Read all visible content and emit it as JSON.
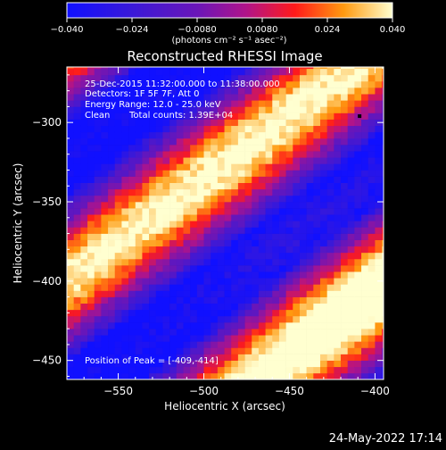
{
  "chart_data": {
    "type": "heatmap",
    "title": "Reconstructed RHESSI Image",
    "xlabel": "Heliocentric X (arcsec)",
    "ylabel": "Heliocentric Y (arcsec)",
    "xlim": [
      -580,
      -395
    ],
    "ylim": [
      -462,
      -265
    ],
    "xticks": [
      -550,
      -500,
      -450,
      -400
    ],
    "yticks": [
      -300,
      -350,
      -400,
      -450
    ],
    "colorbar": {
      "min": -0.04,
      "max": 0.04,
      "ticks": [
        -0.04,
        -0.024,
        -0.008,
        0.008,
        0.024,
        0.04
      ],
      "tick_labels": [
        "−0.040",
        "−0.024",
        "−0.0080",
        "0.0080",
        "0.024",
        "0.040"
      ],
      "unit_label": "(photons cm⁻² s⁻¹ asec⁻²)"
    },
    "annotations": [
      "25-Dec-2015 11:32:00.000 to 11:38:00.000",
      "Detectors: 1F 5F 7F, Att 0",
      "Energy Range: 12.0 - 25.0 keV",
      "Clean",
      "Total counts: 1.39E+04"
    ],
    "peak_label": "Position of Peak = [-409,-414]",
    "peak_position": [
      -409,
      -414
    ],
    "grid": false,
    "colormap": "rhessi-3",
    "pattern": "diagonal bands running upper-left to lower-right, bright ridge through peak near (-409,-414)"
  },
  "footer": {
    "timestamp": "24-May-2022 17:14"
  },
  "colors": {
    "background": "#000000",
    "text": "#ffffff",
    "low": "#1515ff",
    "mid": "#9a1aa8",
    "high": "#ffff80"
  }
}
